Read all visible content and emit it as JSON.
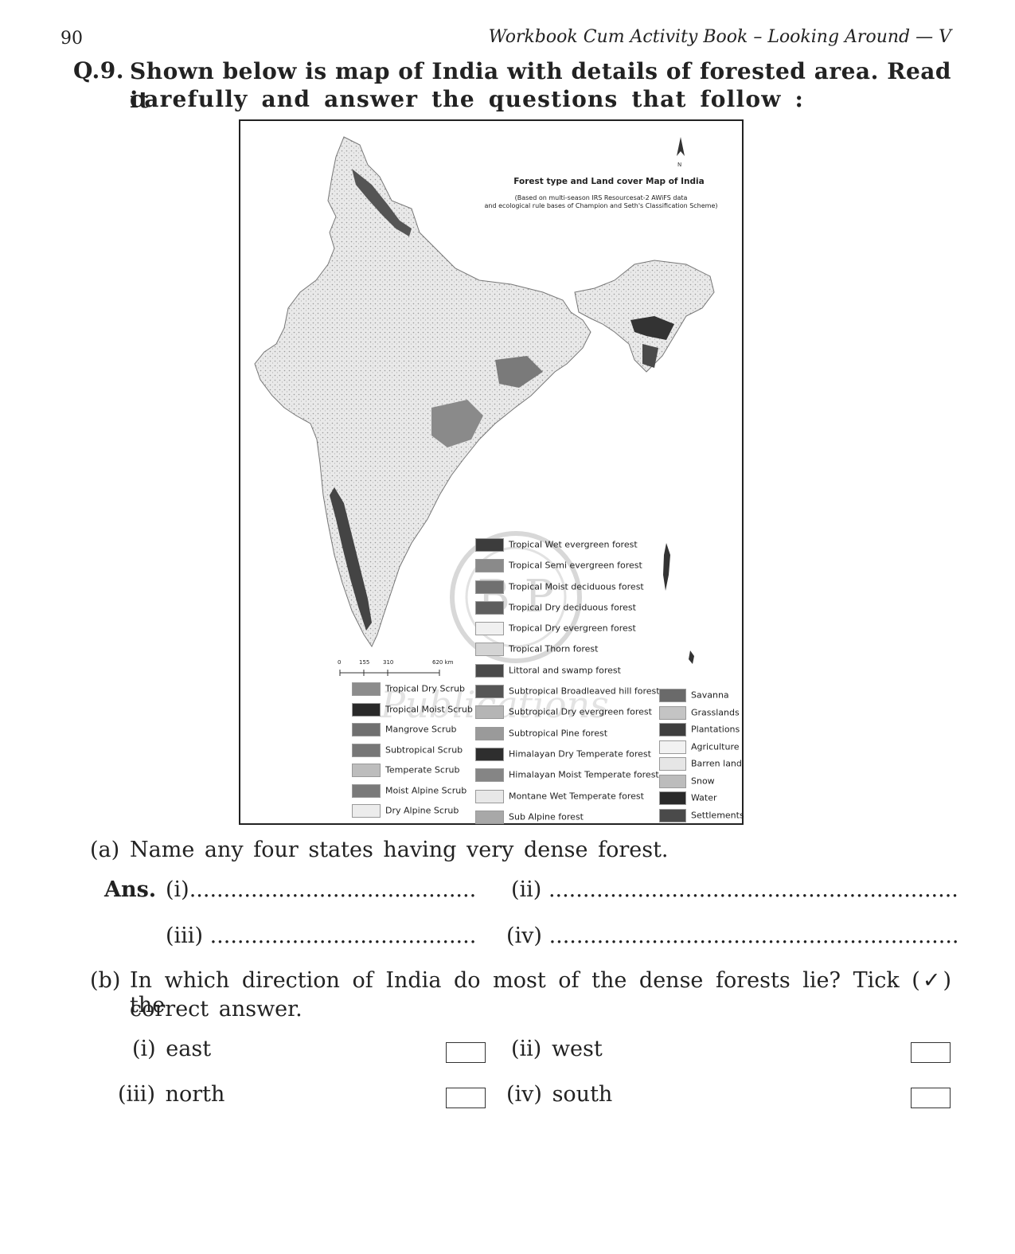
{
  "header": {
    "page_number": "90",
    "running_title": "Workbook Cum Activity Book – Looking Around — V"
  },
  "question": {
    "number": "Q.9.",
    "text_line1": "Shown below is map of India with details of forested area. Read it",
    "text_line2": "carefully and answer the questions that follow :"
  },
  "map": {
    "title": "Forest type and Land cover Map of India",
    "subtitle_line1": "(Based on multi-season IRS Resourcesat-2 AWiFS data",
    "subtitle_line2": "and ecological rule bases of Champion and Seth's Classification Scheme)",
    "north_label": "N",
    "scale": {
      "labels": [
        "0",
        "155",
        "310",
        "620 km"
      ]
    },
    "watermark_letters": "B P",
    "watermark_text": "Publications",
    "legend_col2": [
      {
        "label": "Tropical Wet evergreen forest",
        "color": "#3c3c3c"
      },
      {
        "label": "Tropical Semi evergreen forest",
        "color": "#8a8a8a"
      },
      {
        "label": "Tropical Moist deciduous forest",
        "color": "#707070"
      },
      {
        "label": "Tropical Dry deciduous forest",
        "color": "#5e5e5e"
      },
      {
        "label": "Tropical Dry evergreen forest",
        "color": "#f0f0f0"
      },
      {
        "label": "Tropical Thorn forest",
        "color": "#d4d4d4"
      },
      {
        "label": "Littoral and swamp forest",
        "color": "#4a4a4a"
      },
      {
        "label": "Subtropical Broadleaved hill forest",
        "color": "#555555"
      },
      {
        "label": "Subtropical Dry evergreen forest",
        "color": "#b5b5b5"
      },
      {
        "label": "Subtropical Pine forest",
        "color": "#9a9a9a"
      },
      {
        "label": "Himalayan Dry Temperate forest",
        "color": "#2e2e2e"
      },
      {
        "label": "Himalayan Moist Temperate forest",
        "color": "#858585"
      },
      {
        "label": "Montane Wet Temperate forest",
        "color": "#e8e8e8"
      },
      {
        "label": "Sub Alpine forest",
        "color": "#a8a8a8"
      }
    ],
    "legend_col1": [
      {
        "label": "Tropical Dry Scrub",
        "color": "#8c8c8c"
      },
      {
        "label": "Tropical Moist Scrub",
        "color": "#2a2a2a"
      },
      {
        "label": "Mangrove Scrub",
        "color": "#707070"
      },
      {
        "label": "Subtropical Scrub",
        "color": "#777777"
      },
      {
        "label": "Temperate Scrub",
        "color": "#bdbdbd"
      },
      {
        "label": "Moist Alpine Scrub",
        "color": "#7a7a7a"
      },
      {
        "label": "Dry Alpine Scrub",
        "color": "#ececec"
      }
    ],
    "legend_col3": [
      {
        "label": "Savanna",
        "color": "#6a6a6a"
      },
      {
        "label": "Grasslands",
        "color": "#c4c4c4"
      },
      {
        "label": "Plantations",
        "color": "#3e3e3e"
      },
      {
        "label": "Agriculture",
        "color": "#f2f2f2"
      },
      {
        "label": "Barren land",
        "color": "#e6e6e6"
      },
      {
        "label": "Snow",
        "color": "#bcbcbc"
      },
      {
        "label": "Water",
        "color": "#2a2a2a"
      },
      {
        "label": "Settlements",
        "color": "#4a4a4a"
      }
    ]
  },
  "part_a": {
    "label": "(a)",
    "text": "Name any four states having very dense forest.",
    "ans_label": "Ans.",
    "blanks": [
      {
        "num": "(i)",
        "dots": ".........................................."
      },
      {
        "num": "(ii)",
        "dots": "............................................................"
      },
      {
        "num": "(iii)",
        "dots": "......................................."
      },
      {
        "num": "(iv)",
        "dots": "............................................................"
      }
    ]
  },
  "part_b": {
    "label": "(b)",
    "text_line1": "In which direction of India do most of the dense forests lie? Tick (✓) the",
    "text_line2": "correct answer.",
    "options": [
      {
        "num": "(i)",
        "text": "east"
      },
      {
        "num": "(ii)",
        "text": "west"
      },
      {
        "num": "(iii)",
        "text": "north"
      },
      {
        "num": "(iv)",
        "text": "south"
      }
    ]
  }
}
